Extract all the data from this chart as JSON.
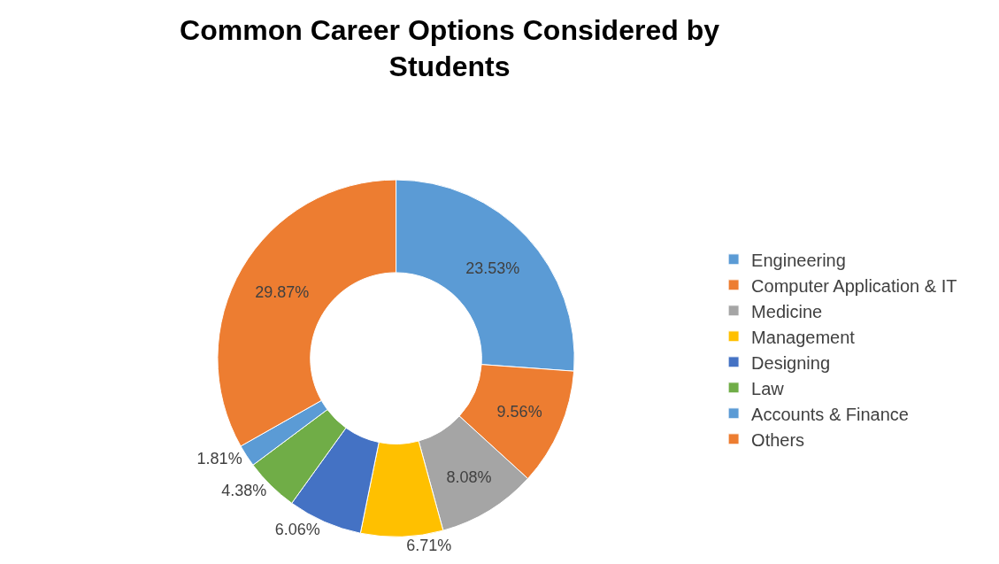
{
  "chart_data": {
    "type": "donut",
    "title": "Common Career Options Considered by Students",
    "categories": [
      "Engineering",
      "Computer Application & IT",
      "Medicine",
      "Management",
      "Designing",
      "Law",
      "Accounts & Finance",
      "Others"
    ],
    "values": [
      23.53,
      9.56,
      8.08,
      6.71,
      6.06,
      4.38,
      1.81,
      29.87
    ],
    "value_labels": [
      "23.53%",
      "9.56%",
      "8.08%",
      "6.71%",
      "6.06%",
      "4.38%",
      "1.81%",
      "29.87%"
    ],
    "colors": [
      "#5b9bd5",
      "#ed7d31",
      "#a5a5a5",
      "#ffc000",
      "#4472c4",
      "#70ad47",
      "#5b9bd5",
      "#ed7d31"
    ],
    "legend": "right"
  }
}
